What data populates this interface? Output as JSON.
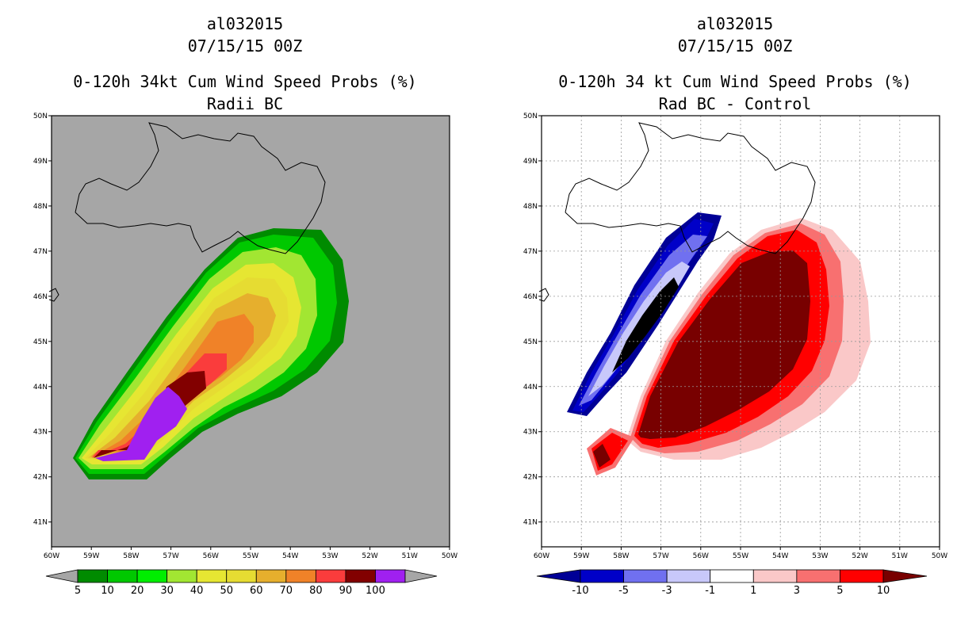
{
  "panels": [
    {
      "id": "left",
      "storm_id": "al032015",
      "datetime": "07/15/15 00Z",
      "title": "0-120h 34kt Cum Wind Speed Probs (%)",
      "subtitle": "Radii BC",
      "background": "#a6a6a6",
      "grid": false,
      "colorbar": {
        "labels": [
          "5",
          "10",
          "20",
          "30",
          "40",
          "50",
          "60",
          "70",
          "80",
          "90",
          "100"
        ],
        "colors": [
          "#008b00",
          "#00c800",
          "#00ee00",
          "#a2e632",
          "#e6e632",
          "#e6dc32",
          "#e6af2d",
          "#f08228",
          "#fa3c3c",
          "#820000",
          "#a020f0"
        ],
        "left_arrow": "#a6a6a6",
        "right_arrow": "#a6a6a6"
      },
      "contours": [
        {
          "level": "5",
          "color": "#008b00"
        },
        {
          "level": "10",
          "color": "#00c800"
        },
        {
          "level": "20",
          "color": "#a2e632"
        },
        {
          "level": "30",
          "color": "#e6e632"
        },
        {
          "level": "40",
          "color": "#e6dc32"
        },
        {
          "level": "50",
          "color": "#e6af2d"
        },
        {
          "level": "60",
          "color": "#f08228"
        },
        {
          "level": "70",
          "color": "#fa3c3c"
        },
        {
          "level": "80",
          "color": "#820000"
        },
        {
          "level": "90",
          "color": "#a020f0"
        }
      ]
    },
    {
      "id": "right",
      "storm_id": "al032015",
      "datetime": "07/15/15 00Z",
      "title": "0-120h 34 kt Cum Wind Speed Probs (%)",
      "subtitle": "Rad BC - Control",
      "background": "#ffffff",
      "grid": true,
      "colorbar": {
        "labels": [
          "-10",
          "-5",
          "-3",
          "-1",
          "1",
          "3",
          "5",
          "10"
        ],
        "colors": [
          "#0000c8",
          "#7070f0",
          "#c8c8fa",
          "#ffffff",
          "#fac8c8",
          "#f87070",
          "#ff0000"
        ],
        "left_arrow": "#000096",
        "right_arrow": "#780000"
      },
      "contours": [
        {
          "level": "-10",
          "color": "#000096"
        },
        {
          "level": "-5",
          "color": "#0000c8"
        },
        {
          "level": "-3",
          "color": "#7070f0"
        },
        {
          "level": "-1",
          "color": "#c8c8fa"
        },
        {
          "level": "1",
          "color": "#fac8c8"
        },
        {
          "level": "3",
          "color": "#f87070"
        },
        {
          "level": "5",
          "color": "#ff0000"
        },
        {
          "level": "10",
          "color": "#780000"
        }
      ]
    }
  ],
  "axes": {
    "y_labels": [
      "50N",
      "49N",
      "48N",
      "47N",
      "46N",
      "45N",
      "44N",
      "43N",
      "42N",
      "41N"
    ],
    "x_labels": [
      "60W",
      "59W",
      "58W",
      "57W",
      "56W",
      "55W",
      "54W",
      "53W",
      "52W",
      "51W",
      "50W"
    ]
  }
}
